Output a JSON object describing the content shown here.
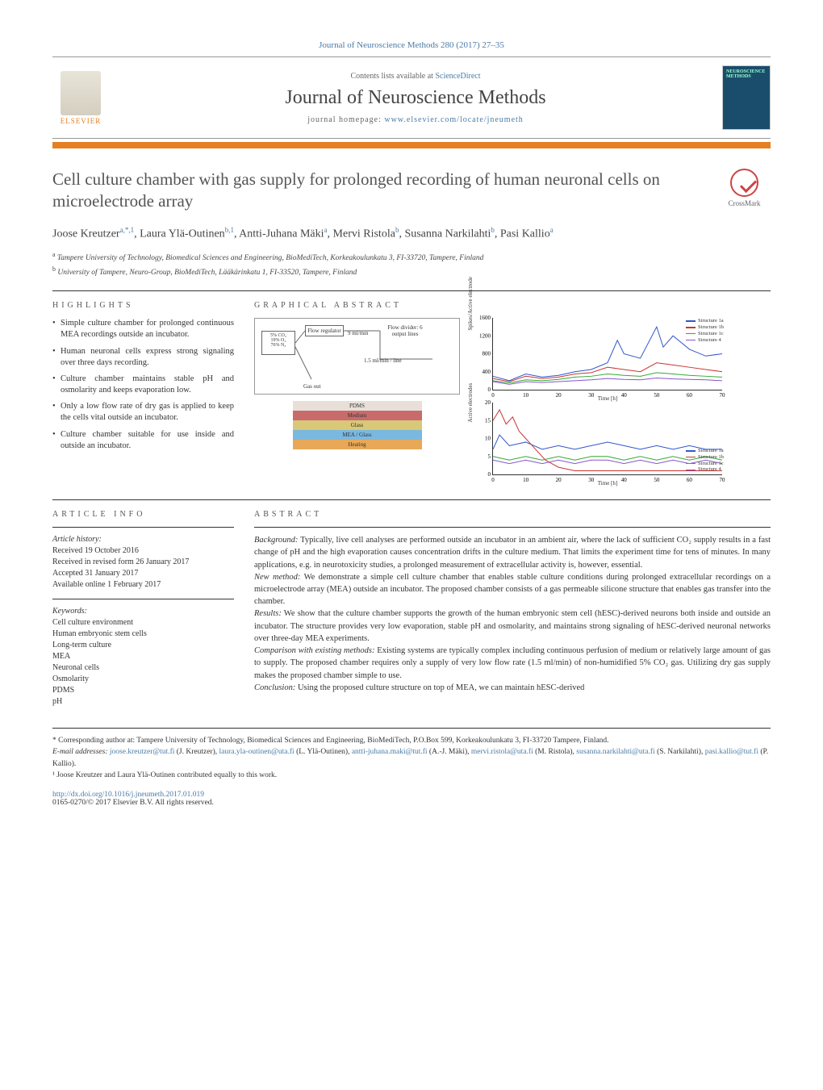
{
  "journal_ref": "Journal of Neuroscience Methods 280 (2017) 27–35",
  "header": {
    "contents_text": "Contents lists available at ",
    "contents_link": "ScienceDirect",
    "journal_name": "Journal of Neuroscience Methods",
    "homepage_label": "journal homepage: ",
    "homepage_url": "www.elsevier.com/locate/jneumeth",
    "elsevier_label": "ELSEVIER",
    "cover_title": "NEUROSCIENCE METHODS"
  },
  "crossmark_label": "CrossMark",
  "title": "Cell culture chamber with gas supply for prolonged recording of human neuronal cells on microelectrode array",
  "authors_html": "Joose Kreutzer<sup>a,*,1</sup>, Laura Ylä-Outinen<sup>b,1</sup>, Antti-Juhana Mäki<sup>a</sup>, Mervi Ristola<sup>b</sup>, Susanna Narkilahti<sup>b</sup>, Pasi Kallio<sup>a</sup>",
  "affiliations": [
    {
      "sup": "a",
      "text": "Tampere University of Technology, Biomedical Sciences and Engineering, BioMediTech, Korkeakoulunkatu 3, FI-33720, Tampere, Finland"
    },
    {
      "sup": "b",
      "text": "University of Tampere, Neuro-Group, BioMediTech, Lääkärinkatu 1, FI-33520, Tampere, Finland"
    }
  ],
  "highlights_label": "HIGHLIGHTS",
  "highlights": [
    "Simple culture chamber for prolonged continuous MEA recordings outside an incubator.",
    "Human neuronal cells express strong signaling over three days recording.",
    "Culture chamber maintains stable pH and osmolarity and keeps evaporation low.",
    "Only a low flow rate of dry gas is applied to keep the cells vital outside an incubator.",
    "Culture chamber suitable for use inside and outside an incubator."
  ],
  "graphical_label": "GRAPHICAL ABSTRACT",
  "ga_diagram": {
    "flow_regulator": "Flow regulator",
    "flow_rate": "9 ml/min",
    "flow_divider": "Flow divider: 6 output lines",
    "line_rate": "1.5 ml/min / line",
    "gas_mix": "5% CO₂\n19% O₂\n76% N₂",
    "gas_out": "Gas out"
  },
  "ga_layers": [
    {
      "label": "PDMS",
      "color": "#e8e0d8"
    },
    {
      "label": "Medium",
      "color": "#c96b6b"
    },
    {
      "label": "Glass",
      "color": "#d8c878"
    },
    {
      "label": "MEA / Glass",
      "color": "#7ab8e0"
    },
    {
      "label": "Heating",
      "color": "#e8a858"
    }
  ],
  "chart1": {
    "ylabel": "Spikes/Active electrode",
    "xlabel": "Time [h]",
    "ylim": [
      0,
      1600
    ],
    "yticks": [
      0,
      400,
      800,
      1200,
      1600
    ],
    "xlim": [
      0,
      70
    ],
    "xticks": [
      0,
      10,
      20,
      30,
      40,
      50,
      60,
      70
    ],
    "series": [
      {
        "name": "Structure 1a",
        "color": "#3355cc",
        "data": [
          [
            0,
            300
          ],
          [
            5,
            200
          ],
          [
            10,
            350
          ],
          [
            15,
            280
          ],
          [
            20,
            320
          ],
          [
            25,
            400
          ],
          [
            30,
            450
          ],
          [
            35,
            600
          ],
          [
            38,
            1100
          ],
          [
            40,
            800
          ],
          [
            45,
            700
          ],
          [
            50,
            1400
          ],
          [
            52,
            950
          ],
          [
            55,
            1200
          ],
          [
            60,
            900
          ],
          [
            65,
            750
          ],
          [
            70,
            800
          ]
        ]
      },
      {
        "name": "Structure 1b",
        "color": "#cc3333",
        "data": [
          [
            0,
            250
          ],
          [
            5,
            180
          ],
          [
            10,
            300
          ],
          [
            15,
            250
          ],
          [
            20,
            280
          ],
          [
            25,
            350
          ],
          [
            30,
            380
          ],
          [
            35,
            500
          ],
          [
            40,
            450
          ],
          [
            45,
            400
          ],
          [
            50,
            600
          ],
          [
            55,
            550
          ],
          [
            60,
            500
          ],
          [
            65,
            450
          ],
          [
            70,
            400
          ]
        ]
      },
      {
        "name": "Structure 1c",
        "color": "#33aa33",
        "data": [
          [
            0,
            200
          ],
          [
            5,
            150
          ],
          [
            10,
            220
          ],
          [
            15,
            200
          ],
          [
            20,
            230
          ],
          [
            25,
            280
          ],
          [
            30,
            300
          ],
          [
            35,
            350
          ],
          [
            40,
            320
          ],
          [
            45,
            300
          ],
          [
            50,
            380
          ],
          [
            55,
            350
          ],
          [
            60,
            320
          ],
          [
            65,
            300
          ],
          [
            70,
            280
          ]
        ]
      },
      {
        "name": "Structure 4",
        "color": "#8855cc",
        "data": [
          [
            0,
            180
          ],
          [
            5,
            120
          ],
          [
            10,
            180
          ],
          [
            15,
            160
          ],
          [
            20,
            180
          ],
          [
            25,
            200
          ],
          [
            30,
            220
          ],
          [
            35,
            250
          ],
          [
            40,
            230
          ],
          [
            45,
            220
          ],
          [
            50,
            260
          ],
          [
            55,
            240
          ],
          [
            60,
            230
          ],
          [
            65,
            220
          ],
          [
            70,
            200
          ]
        ]
      }
    ]
  },
  "chart2": {
    "ylabel": "Active electrodes",
    "xlabel": "Time [h]",
    "ylim": [
      0,
      20
    ],
    "yticks": [
      0,
      5,
      10,
      15,
      20
    ],
    "xlim": [
      0,
      70
    ],
    "xticks": [
      0,
      10,
      20,
      30,
      40,
      50,
      60,
      70
    ],
    "series": [
      {
        "name": "Structure 1a",
        "color": "#3355cc",
        "data": [
          [
            0,
            7
          ],
          [
            2,
            11
          ],
          [
            5,
            8
          ],
          [
            10,
            9
          ],
          [
            15,
            7
          ],
          [
            20,
            8
          ],
          [
            25,
            7
          ],
          [
            30,
            8
          ],
          [
            35,
            9
          ],
          [
            40,
            8
          ],
          [
            45,
            7
          ],
          [
            50,
            8
          ],
          [
            55,
            7
          ],
          [
            60,
            8
          ],
          [
            65,
            7
          ],
          [
            70,
            7
          ]
        ]
      },
      {
        "name": "Structure 1b",
        "color": "#cc3333",
        "data": [
          [
            0,
            15
          ],
          [
            2,
            18
          ],
          [
            4,
            14
          ],
          [
            6,
            16
          ],
          [
            8,
            12
          ],
          [
            10,
            10
          ],
          [
            12,
            8
          ],
          [
            14,
            6
          ],
          [
            16,
            4
          ],
          [
            18,
            3
          ],
          [
            20,
            2
          ],
          [
            25,
            1
          ],
          [
            30,
            1
          ],
          [
            35,
            1
          ],
          [
            40,
            1
          ],
          [
            45,
            1
          ],
          [
            50,
            1
          ],
          [
            55,
            1
          ],
          [
            60,
            1
          ],
          [
            65,
            1
          ],
          [
            70,
            1
          ]
        ]
      },
      {
        "name": "Structure 1c",
        "color": "#33aa33",
        "data": [
          [
            0,
            5
          ],
          [
            5,
            4
          ],
          [
            10,
            5
          ],
          [
            15,
            4
          ],
          [
            20,
            5
          ],
          [
            25,
            4
          ],
          [
            30,
            5
          ],
          [
            35,
            5
          ],
          [
            40,
            4
          ],
          [
            45,
            5
          ],
          [
            50,
            4
          ],
          [
            55,
            5
          ],
          [
            60,
            4
          ],
          [
            65,
            5
          ],
          [
            70,
            4
          ]
        ]
      },
      {
        "name": "Structure 4",
        "color": "#8855cc",
        "data": [
          [
            0,
            4
          ],
          [
            5,
            3
          ],
          [
            10,
            4
          ],
          [
            15,
            3
          ],
          [
            20,
            4
          ],
          [
            25,
            3
          ],
          [
            30,
            4
          ],
          [
            35,
            4
          ],
          [
            40,
            3
          ],
          [
            45,
            4
          ],
          [
            50,
            3
          ],
          [
            55,
            4
          ],
          [
            60,
            3
          ],
          [
            65,
            4
          ],
          [
            70,
            3
          ]
        ]
      }
    ]
  },
  "article_info_label": "ARTICLE INFO",
  "article_history_label": "Article history:",
  "article_history": [
    "Received 19 October 2016",
    "Received in revised form 26 January 2017",
    "Accepted 31 January 2017",
    "Available online 1 February 2017"
  ],
  "keywords_label": "Keywords:",
  "keywords": [
    "Cell culture environment",
    "Human embryonic stem cells",
    "Long-term culture",
    "MEA",
    "Neuronal cells",
    "Osmolarity",
    "PDMS",
    "pH"
  ],
  "abstract_label": "ABSTRACT",
  "abstract_paras": [
    {
      "label": "Background:",
      "text": " Typically, live cell analyses are performed outside an incubator in an ambient air, where the lack of sufficient CO₂ supply results in a fast change of pH and the high evaporation causes concentration drifts in the culture medium. That limits the experiment time for tens of minutes. In many applications, e.g. in neurotoxicity studies, a prolonged measurement of extracellular activity is, however, essential."
    },
    {
      "label": "New method:",
      "text": " We demonstrate a simple cell culture chamber that enables stable culture conditions during prolonged extracellular recordings on a microelectrode array (MEA) outside an incubator. The proposed chamber consists of a gas permeable silicone structure that enables gas transfer into the chamber."
    },
    {
      "label": "Results:",
      "text": " We show that the culture chamber supports the growth of the human embryonic stem cell (hESC)-derived neurons both inside and outside an incubator. The structure provides very low evaporation, stable pH and osmolarity, and maintains strong signaling of hESC-derived neuronal networks over three-day MEA experiments."
    },
    {
      "label": "Comparison with existing methods:",
      "text": " Existing systems are typically complex including continuous perfusion of medium or relatively large amount of gas to supply. The proposed chamber requires only a supply of very low flow rate (1.5 ml/min) of non-humidified 5% CO₂ gas. Utilizing dry gas supply makes the proposed chamber simple to use."
    },
    {
      "label": "Conclusion:",
      "text": " Using the proposed culture structure on top of MEA, we can maintain hESC-derived"
    }
  ],
  "corr_author": "* Corresponding author at: Tampere University of Technology, Biomedical Sciences and Engineering, BioMediTech, P.O.Box 599, Korkeakoulunkatu 3, FI-33720 Tampere, Finland.",
  "emails_label": "E-mail addresses: ",
  "emails": [
    {
      "email": "joose.kreutzer@tut.fi",
      "name": "(J. Kreutzer)"
    },
    {
      "email": "laura.yla-outinen@uta.fi",
      "name": "(L. Ylä-Outinen)"
    },
    {
      "email": "antti-juhana.maki@tut.fi",
      "name": "(A.-J. Mäki)"
    },
    {
      "email": "mervi.ristola@uta.fi",
      "name": "(M. Ristola)"
    },
    {
      "email": "susanna.narkilahti@uta.fi",
      "name": "(S. Narkilahti)"
    },
    {
      "email": "pasi.kallio@tut.fi",
      "name": "(P. Kallio)"
    }
  ],
  "contrib_note": "¹ Joose Kreutzer and Laura Ylä-Outinen contributed equally to this work.",
  "doi": "http://dx.doi.org/10.1016/j.jneumeth.2017.01.019",
  "copyright": "0165-0270/© 2017 Elsevier B.V. All rights reserved."
}
